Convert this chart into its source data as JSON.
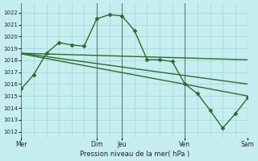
{
  "background_color": "#c6eef0",
  "grid_color": "#99cccc",
  "line_color": "#2d6a2d",
  "marker_color": "#2d6a2d",
  "xlabel": "Pression niveau de la mer( hPa )",
  "ylim": [
    1011.5,
    1022.8
  ],
  "yticks": [
    1012,
    1013,
    1014,
    1015,
    1016,
    1017,
    1018,
    1019,
    1020,
    1021,
    1022
  ],
  "xtick_labels": [
    "Mer",
    "Dim",
    "Jeu",
    "Ven",
    "Sam"
  ],
  "xtick_positions": [
    0,
    24,
    32,
    52,
    72
  ],
  "vlines": [
    0,
    24,
    32,
    52,
    72
  ],
  "xlim": [
    0,
    72
  ],
  "series": [
    {
      "x": [
        0,
        4,
        8,
        12,
        16,
        20,
        24,
        28,
        32,
        36,
        40,
        44,
        48,
        52,
        56,
        60,
        64,
        68,
        72
      ],
      "y": [
        1015.6,
        1016.8,
        1018.6,
        1019.5,
        1019.3,
        1019.2,
        1021.5,
        1021.85,
        1021.75,
        1020.5,
        1018.05,
        1018.05,
        1017.9,
        1016.0,
        1015.2,
        1013.8,
        1012.3,
        1013.5,
        1014.85
      ],
      "marker": "D",
      "markersize": 2.5,
      "linewidth": 1.0
    },
    {
      "x": [
        0,
        72
      ],
      "y": [
        1018.6,
        1018.05
      ],
      "marker": null,
      "linewidth": 1.0
    },
    {
      "x": [
        0,
        72
      ],
      "y": [
        1018.6,
        1016.0
      ],
      "marker": null,
      "linewidth": 1.0
    },
    {
      "x": [
        0,
        72
      ],
      "y": [
        1018.55,
        1015.0
      ],
      "marker": null,
      "linewidth": 1.0
    }
  ]
}
